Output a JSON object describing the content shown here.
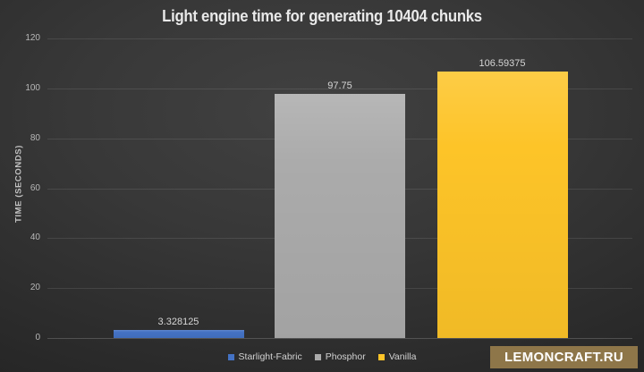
{
  "chart_data": {
    "type": "bar",
    "title": "Light engine time for generating 10404 chunks",
    "ylabel": "TIME (SECONDS)",
    "categories": [
      "Starlight-Fabric",
      "Phosphor",
      "Vanilla"
    ],
    "values": [
      3.328125,
      97.75,
      106.59375
    ],
    "value_labels": [
      "3.328125",
      "97.75",
      "106.59375"
    ],
    "bar_colors": [
      "#4472c4",
      "#ababab",
      "#fdc428"
    ],
    "ylim": [
      0,
      120
    ],
    "yticks": [
      0,
      20,
      40,
      60,
      80,
      100,
      120
    ],
    "grid": "horizontal",
    "legend_position": "bottom-center"
  },
  "watermark": {
    "text": "LEMONCRAFT.RU",
    "background_color": "#8e7649",
    "text_color": "#ffffff"
  },
  "theme": {
    "background_center": "#414141",
    "background_edge": "#242424",
    "title_color": "#e9e9e9",
    "axis_text_color": "#b8b8b8",
    "value_label_color": "#d6d6d6",
    "gridline_color": "rgba(255,255,255,0.10)",
    "baseline_color": "rgba(255,255,255,0.18)"
  }
}
